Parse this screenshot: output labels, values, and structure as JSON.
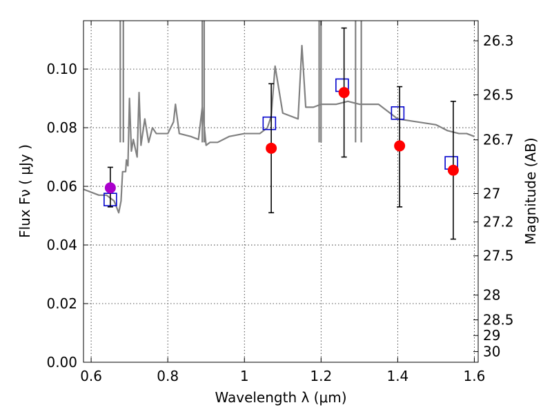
{
  "chart_data": {
    "type": "scatter",
    "xlabel": "Wavelength  λ (μm)",
    "ylabel": "Flux  Fν  ( μJy )",
    "y2label": "Magnitude (AB)",
    "xlim": [
      0.58,
      1.61
    ],
    "ylim": [
      0.0,
      0.1165
    ],
    "x_ticks": [
      0.6,
      0.8,
      1.0,
      1.2,
      1.4,
      1.6
    ],
    "x_tick_labels": [
      "0.6",
      "0.8",
      "1",
      "1.2",
      "1.4",
      "1.6"
    ],
    "y_ticks": [
      0.0,
      0.02,
      0.04,
      0.06,
      0.08,
      0.1
    ],
    "y_tick_labels": [
      "0.00",
      "0.02",
      "0.04",
      "0.06",
      "0.08",
      "0.10"
    ],
    "y2_tick_labels": [
      "26.3",
      "26.5",
      "26.7",
      "27",
      "27.2",
      "27.5",
      "28",
      "28.5",
      "29",
      "30"
    ],
    "grid": true,
    "colors": {
      "model": "#808080",
      "observed": "#ff0000",
      "synthetic": "#0000cc",
      "optical": "#aa00cc",
      "errorbar": "#000000"
    },
    "series": [
      {
        "type": "line",
        "x": [
          0.58,
          0.6,
          0.62,
          0.64,
          0.66,
          0.672,
          0.678,
          0.682,
          0.69,
          0.692,
          0.696,
          0.7,
          0.705,
          0.71,
          0.72,
          0.725,
          0.73,
          0.74,
          0.75,
          0.76,
          0.77,
          0.78,
          0.8,
          0.815,
          0.82,
          0.83,
          0.86,
          0.88,
          0.89,
          0.9,
          0.91,
          0.93,
          0.96,
          1.0,
          1.04,
          1.06,
          1.07,
          1.08,
          1.1,
          1.12,
          1.14,
          1.15,
          1.16,
          1.18,
          1.2,
          1.22,
          1.24,
          1.27,
          1.3,
          1.35,
          1.4,
          1.45,
          1.5,
          1.53,
          1.56,
          1.58,
          1.6
        ],
        "y": [
          0.059,
          0.058,
          0.057,
          0.057,
          0.055,
          0.051,
          0.055,
          0.065,
          0.065,
          0.069,
          0.067,
          0.09,
          0.072,
          0.076,
          0.07,
          0.092,
          0.074,
          0.083,
          0.075,
          0.08,
          0.078,
          0.078,
          0.078,
          0.082,
          0.088,
          0.078,
          0.077,
          0.076,
          0.087,
          0.074,
          0.075,
          0.075,
          0.077,
          0.078,
          0.078,
          0.08,
          0.084,
          0.101,
          0.085,
          0.084,
          0.083,
          0.108,
          0.087,
          0.087,
          0.088,
          0.088,
          0.088,
          0.089,
          0.088,
          0.088,
          0.083,
          0.082,
          0.081,
          0.079,
          0.078,
          0.078,
          0.077
        ]
      },
      {
        "type": "scatter",
        "x": [
          1.07,
          1.26,
          1.405,
          1.545
        ],
        "y": [
          0.073,
          0.092,
          0.0738,
          0.0655
        ],
        "yerr_low": [
          0.051,
          0.07,
          0.053,
          0.042
        ],
        "yerr_high": [
          0.095,
          0.114,
          0.094,
          0.089
        ]
      },
      {
        "type": "scatter",
        "x": [
          0.65
        ],
        "y": [
          0.0595
        ],
        "yerr_low": [
          0.053
        ],
        "yerr_high": [
          0.0665
        ]
      },
      {
        "type": "scatter",
        "x": [
          0.65,
          1.065,
          1.255,
          1.4,
          1.54
        ],
        "y": [
          0.0555,
          0.0815,
          0.0945,
          0.085,
          0.068
        ]
      }
    ]
  }
}
